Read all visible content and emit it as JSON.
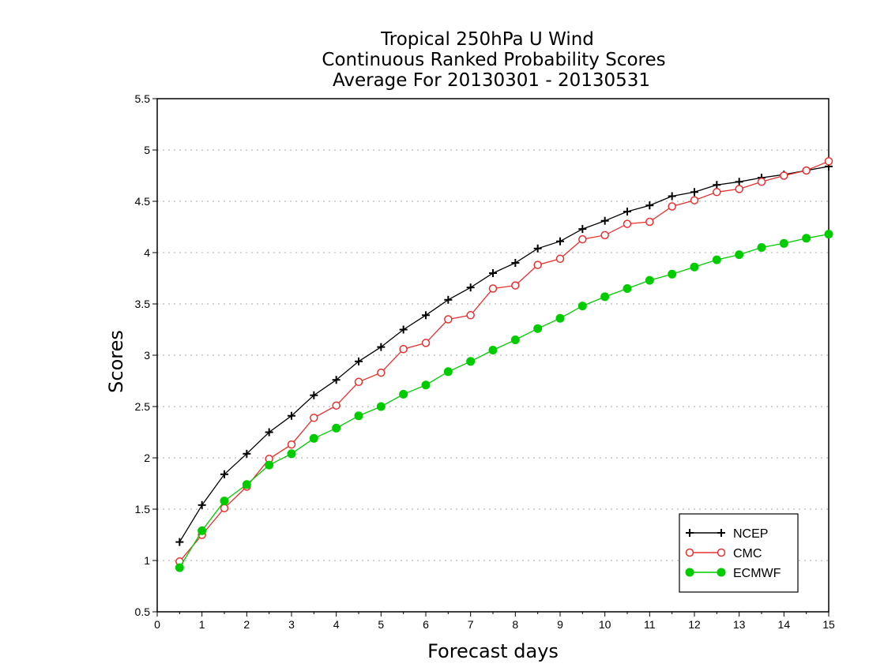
{
  "chart_data": {
    "type": "line",
    "title_lines": [
      "Tropical 250hPa U Wind",
      "Continuous Ranked Probability Scores",
      "Average For 20130301 - 20130531"
    ],
    "xlabel": "Forecast days",
    "ylabel": "Scores",
    "xlim": [
      0,
      15
    ],
    "ylim": [
      0.5,
      5.5
    ],
    "xticks": [
      "0",
      "1",
      "2",
      "3",
      "4",
      "5",
      "6",
      "7",
      "8",
      "9",
      "10",
      "11",
      "12",
      "13",
      "14",
      "15"
    ],
    "yticks": [
      "0.5",
      "1",
      "1.5",
      "2",
      "2.5",
      "3",
      "3.5",
      "4",
      "4.5",
      "5",
      "5.5"
    ],
    "grid": "dotted horizontal",
    "legend_position": "bottom-right",
    "x": [
      0.5,
      1,
      1.5,
      2,
      2.5,
      3,
      3.5,
      4,
      4.5,
      5,
      5.5,
      6,
      6.5,
      7,
      7.5,
      8,
      8.5,
      9,
      9.5,
      10,
      10.5,
      11,
      11.5,
      12,
      12.5,
      13,
      13.5,
      14,
      14.5,
      15
    ],
    "series": [
      {
        "name": "NCEP",
        "color": "#000000",
        "marker": "plus",
        "values": [
          1.18,
          1.54,
          1.84,
          2.04,
          2.25,
          2.41,
          2.61,
          2.76,
          2.94,
          3.08,
          3.25,
          3.39,
          3.54,
          3.66,
          3.8,
          3.9,
          4.04,
          4.11,
          4.23,
          4.31,
          4.4,
          4.46,
          4.55,
          4.59,
          4.66,
          4.69,
          4.73,
          4.76,
          4.8,
          4.84
        ]
      },
      {
        "name": "CMC",
        "color": "#e83030",
        "marker": "open-circle",
        "values": [
          0.99,
          1.25,
          1.51,
          1.72,
          1.99,
          2.13,
          2.39,
          2.51,
          2.74,
          2.83,
          3.06,
          3.12,
          3.35,
          3.39,
          3.65,
          3.68,
          3.88,
          3.94,
          4.13,
          4.17,
          4.28,
          4.3,
          4.45,
          4.51,
          4.59,
          4.62,
          4.69,
          4.75,
          4.8,
          4.89
        ]
      },
      {
        "name": "ECMWF",
        "color": "#00cc00",
        "marker": "filled-circle",
        "values": [
          0.93,
          1.29,
          1.58,
          1.74,
          1.93,
          2.04,
          2.19,
          2.29,
          2.41,
          2.5,
          2.62,
          2.71,
          2.84,
          2.94,
          3.05,
          3.15,
          3.26,
          3.36,
          3.48,
          3.57,
          3.65,
          3.73,
          3.79,
          3.86,
          3.93,
          3.98,
          4.05,
          4.09,
          4.14,
          4.18
        ]
      }
    ]
  }
}
